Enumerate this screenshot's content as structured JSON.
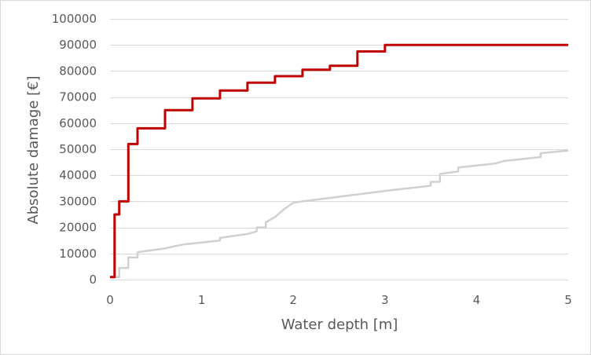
{
  "chart_data": {
    "type": "line",
    "title": "",
    "xlabel": "Water depth [m]",
    "ylabel": "Absolute damage [€]",
    "xlim": [
      0,
      5
    ],
    "ylim": [
      0,
      100000
    ],
    "xticks": [
      0,
      1,
      2,
      3,
      4,
      5
    ],
    "yticks": [
      0,
      10000,
      20000,
      30000,
      40000,
      50000,
      60000,
      70000,
      80000,
      90000,
      100000
    ],
    "grid": "horizontal",
    "legend": "none",
    "series": [
      {
        "color": "#c00000",
        "x": [
          0,
          0.05,
          0.05,
          0.1,
          0.1,
          0.2,
          0.2,
          0.3,
          0.3,
          0.6,
          0.6,
          0.9,
          0.9,
          1.2,
          1.2,
          1.5,
          1.5,
          1.8,
          1.8,
          2.1,
          2.1,
          2.4,
          2.4,
          2.7,
          2.7,
          3.0,
          3.0,
          5.0
        ],
        "y": [
          1000,
          1000,
          25000,
          25000,
          30000,
          30000,
          52000,
          52000,
          58000,
          58000,
          65000,
          65000,
          69500,
          69500,
          72500,
          72500,
          75500,
          75500,
          78000,
          78000,
          80500,
          80500,
          82000,
          82000,
          87500,
          87500,
          90000,
          90000
        ]
      },
      {
        "color": "#d0d0d0",
        "x": [
          0,
          0.1,
          0.1,
          0.2,
          0.2,
          0.3,
          0.3,
          0.6,
          0.8,
          1.2,
          1.2,
          1.5,
          1.6,
          1.6,
          1.7,
          1.7,
          1.8,
          1.9,
          2.0,
          2.1,
          3.0,
          3.5,
          3.5,
          3.6,
          3.6,
          3.8,
          3.8,
          4.2,
          4.3,
          4.7,
          4.7,
          5.0
        ],
        "y": [
          1000,
          1000,
          4500,
          4500,
          8500,
          8500,
          10500,
          12000,
          13500,
          15000,
          16000,
          17500,
          18500,
          20000,
          20000,
          22000,
          24000,
          27000,
          29500,
          30000,
          34000,
          36000,
          37500,
          37500,
          40500,
          41500,
          43000,
          44500,
          45500,
          47000,
          48500,
          49500
        ]
      }
    ]
  }
}
